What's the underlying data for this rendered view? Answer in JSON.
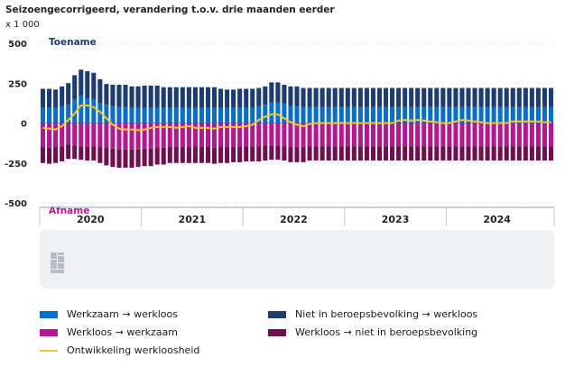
{
  "chart_data": {
    "type": "bar",
    "title": "Seizoengecorrigeerd, verandering t.o.v. drie maanden eerder",
    "unit": "x 1 000",
    "ylim": [
      -500,
      500
    ],
    "yticks": [
      500,
      250,
      0,
      -250,
      -500
    ],
    "ytick_labels": [
      "500",
      "250",
      "0",
      "-250",
      "-500"
    ],
    "annotation_top": "Toename",
    "annotation_bottom": "Afname",
    "years": [
      "2020",
      "2021",
      "2022",
      "2023",
      "2024"
    ],
    "series": [
      {
        "name": "Werkzaam → werkloos",
        "color": "#0a6ec7",
        "side": "positive",
        "values": [
          95,
          95,
          95,
          105,
          115,
          150,
          175,
          155,
          150,
          125,
          115,
          105,
          100,
          100,
          95,
          95,
          95,
          95,
          95,
          95,
          95,
          95,
          95,
          95,
          95,
          95,
          95,
          95,
          95,
          95,
          95,
          95,
          95,
          95,
          105,
          115,
          130,
          130,
          120,
          110,
          105,
          100,
          100,
          100,
          100,
          100,
          100,
          100,
          100,
          100,
          100,
          100,
          100,
          100,
          100,
          100,
          100,
          100,
          100,
          100,
          100,
          100,
          100,
          100,
          100,
          100,
          100,
          100,
          100,
          100,
          100,
          100,
          100,
          100,
          100,
          100,
          100,
          100,
          100,
          100,
          100
        ]
      },
      {
        "name": "Niet in beroepsbevolking → werkloos",
        "color": "#1c3d6e",
        "side": "positive",
        "values": [
          120,
          120,
          115,
          125,
          135,
          150,
          160,
          170,
          165,
          150,
          130,
          135,
          140,
          140,
          135,
          135,
          140,
          140,
          140,
          130,
          130,
          130,
          130,
          130,
          130,
          130,
          130,
          130,
          120,
          115,
          115,
          120,
          120,
          120,
          115,
          115,
          125,
          125,
          120,
          120,
          125,
          120,
          120,
          120,
          120,
          120,
          120,
          120,
          120,
          120,
          120,
          120,
          120,
          120,
          120,
          120,
          120,
          120,
          120,
          120,
          120,
          120,
          120,
          120,
          120,
          120,
          120,
          120,
          120,
          120,
          120,
          120,
          120,
          120,
          120,
          120,
          120,
          120,
          120,
          120,
          120
        ]
      },
      {
        "name": "Werkloos → werkzaam",
        "color": "#b01a8e",
        "side": "negative",
        "values": [
          -150,
          -155,
          -150,
          -145,
          -135,
          -140,
          -145,
          -150,
          -145,
          -150,
          -155,
          -160,
          -165,
          -165,
          -165,
          -165,
          -160,
          -160,
          -155,
          -155,
          -150,
          -150,
          -150,
          -150,
          -150,
          -150,
          -150,
          -155,
          -150,
          -150,
          -150,
          -150,
          -145,
          -145,
          -145,
          -140,
          -140,
          -140,
          -145,
          -150,
          -150,
          -150,
          -145,
          -145,
          -145,
          -145,
          -145,
          -145,
          -145,
          -145,
          -145,
          -145,
          -145,
          -145,
          -145,
          -145,
          -145,
          -145,
          -145,
          -145,
          -145,
          -145,
          -145,
          -145,
          -145,
          -145,
          -145,
          -145,
          -145,
          -145,
          -145,
          -145,
          -145,
          -145,
          -145,
          -145,
          -145,
          -145,
          -145,
          -145,
          -145
        ]
      },
      {
        "name": "Werkloos → niet in beroepsbevolking",
        "color": "#6e0f4e",
        "side": "negative",
        "values": [
          -100,
          -100,
          -100,
          -95,
          -90,
          -85,
          -85,
          -85,
          -90,
          -100,
          -110,
          -115,
          -115,
          -115,
          -115,
          -110,
          -110,
          -110,
          -105,
          -105,
          -100,
          -100,
          -100,
          -100,
          -100,
          -100,
          -100,
          -100,
          -100,
          -100,
          -95,
          -95,
          -95,
          -95,
          -95,
          -95,
          -90,
          -90,
          -90,
          -95,
          -95,
          -95,
          -90,
          -90,
          -90,
          -90,
          -90,
          -90,
          -90,
          -90,
          -90,
          -90,
          -90,
          -90,
          -90,
          -90,
          -90,
          -90,
          -90,
          -90,
          -90,
          -90,
          -90,
          -90,
          -90,
          -90,
          -90,
          -90,
          -90,
          -90,
          -90,
          -90,
          -90,
          -90,
          -90,
          -90,
          -90,
          -90,
          -90,
          -90,
          -90
        ]
      }
    ],
    "line": {
      "name": "Ontwikkeling werkloosheid",
      "color": "#f2c72e",
      "values": [
        -30,
        -35,
        -40,
        -20,
        20,
        60,
        110,
        110,
        100,
        70,
        30,
        -10,
        -35,
        -40,
        -40,
        -45,
        -40,
        -30,
        -25,
        -25,
        -25,
        -30,
        -25,
        -20,
        -30,
        -30,
        -30,
        -35,
        -25,
        -25,
        -25,
        -25,
        -20,
        -10,
        20,
        40,
        55,
        55,
        30,
        5,
        -10,
        -20,
        -5,
        0,
        0,
        0,
        0,
        0,
        0,
        0,
        0,
        0,
        0,
        0,
        0,
        0,
        15,
        20,
        15,
        20,
        15,
        10,
        5,
        0,
        0,
        10,
        20,
        15,
        10,
        5,
        0,
        0,
        0,
        0,
        10,
        10,
        10,
        10,
        10,
        5,
        5
      ]
    }
  }
}
